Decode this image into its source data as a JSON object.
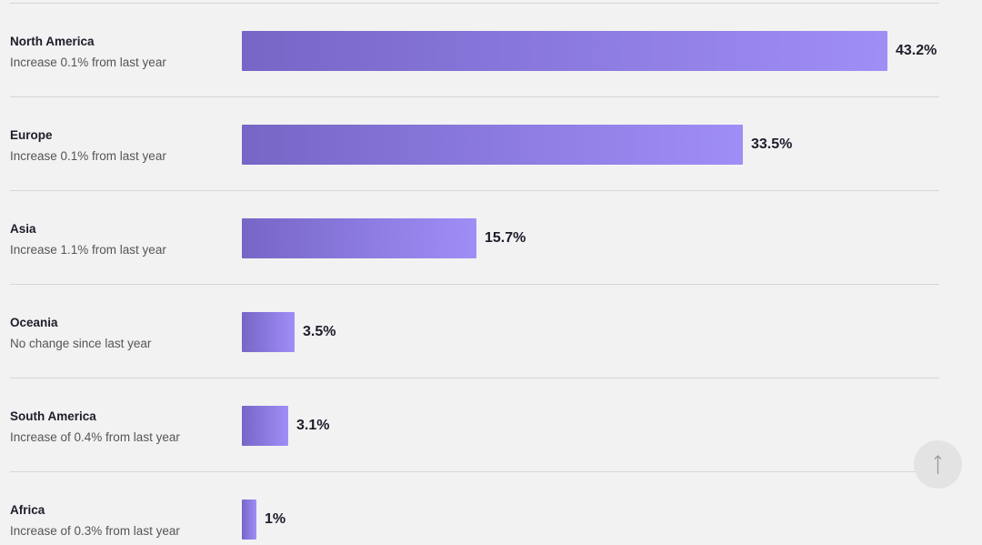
{
  "chart_data": {
    "type": "bar",
    "orientation": "horizontal",
    "categories": [
      "North America",
      "Europe",
      "Asia",
      "Oceania",
      "South America",
      "Africa"
    ],
    "series": [
      {
        "values": [
          43.2,
          33.5,
          15.7,
          3.5,
          3.1,
          1
        ]
      }
    ],
    "value_labels": [
      "43.2%",
      "33.5%",
      "15.7%",
      "3.5%",
      "3.1%",
      "1%"
    ],
    "subtitles": [
      "Increase 0.1% from last year",
      "Increase 0.1% from last year",
      "Increase 1.1% from last year",
      "No change since last year",
      "Increase of 0.4% from last year",
      "Increase of 0.3% from last year"
    ],
    "xlim": [
      0,
      43.2
    ],
    "grid": false,
    "colors": {
      "bar_start": "#7766c6",
      "bar_end": "#a08ef7"
    }
  },
  "controls": {
    "scroll_top_icon": "arrow-up-icon"
  }
}
